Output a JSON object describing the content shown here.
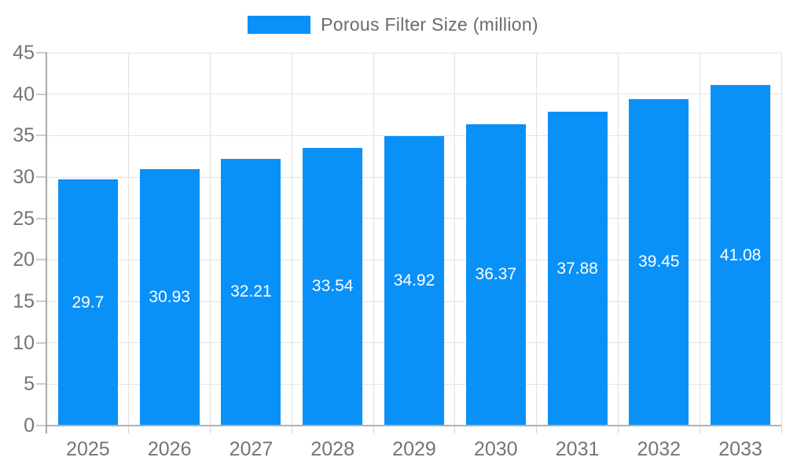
{
  "chart_data": {
    "type": "bar",
    "title": "",
    "legend": {
      "label": "Porous Filter Size (million)",
      "position": "top"
    },
    "categories": [
      "2025",
      "2026",
      "2027",
      "2028",
      "2029",
      "2030",
      "2031",
      "2032",
      "2033"
    ],
    "series": [
      {
        "name": "Porous Filter Size (million)",
        "values": [
          29.7,
          30.93,
          32.21,
          33.54,
          34.92,
          36.37,
          37.88,
          39.45,
          41.08
        ]
      }
    ],
    "value_labels": [
      "29.7",
      "30.93",
      "32.21",
      "33.54",
      "34.92",
      "36.37",
      "37.88",
      "39.45",
      "41.08"
    ],
    "xlabel": "",
    "ylabel": "",
    "ylim": [
      0,
      45
    ],
    "yticks": [
      0,
      5,
      10,
      15,
      20,
      25,
      30,
      35,
      40,
      45
    ],
    "grid": "horizontal and vertical",
    "colors": {
      "bar": "#0a91f8",
      "bar_value_text": "#ffffff",
      "axis_text": "#757575",
      "legend_text": "#6b6b6b",
      "gridline": "#e4e4e4",
      "axis_line": "#a8a8a8",
      "tick": "#cccccc",
      "background": "#ffffff"
    }
  }
}
